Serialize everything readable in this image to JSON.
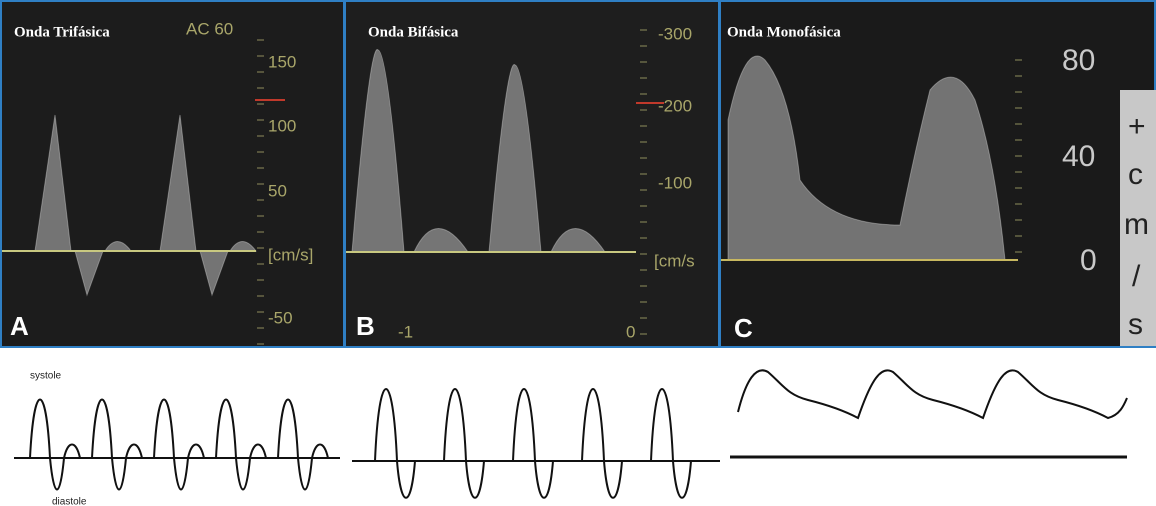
{
  "panels": [
    {
      "title": "Onda Trifásica",
      "setting": "AC 60",
      "label": "A",
      "scale": [
        "150",
        "100",
        "50",
        "[cm/s]",
        "-50"
      ]
    },
    {
      "title": "Onda Bifásica",
      "label": "B",
      "scale": [
        "-300",
        "-200",
        "-100",
        "[cm/s"
      ],
      "time_labels": [
        "-1",
        "0"
      ]
    },
    {
      "title": "Onda Monofásica",
      "label": "C",
      "scale": [
        "80",
        "40",
        "0"
      ],
      "unit_letters": [
        "+",
        "c",
        "m",
        "/",
        "s"
      ]
    }
  ],
  "sketch": {
    "systole": "systole",
    "diastole": "diastole"
  }
}
